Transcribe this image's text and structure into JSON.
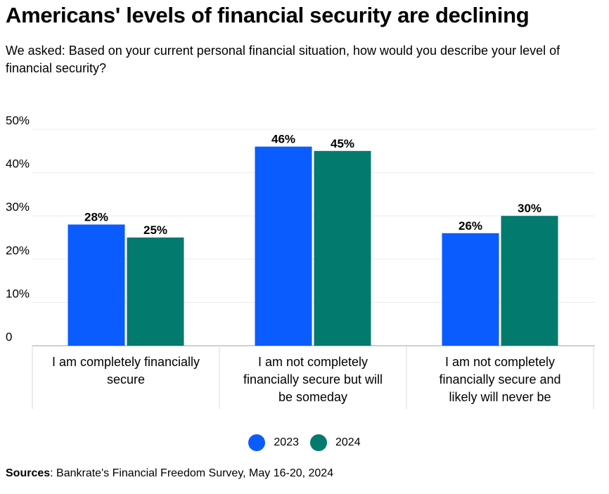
{
  "title": "Americans' levels of financial security are declining",
  "subtitle": "We asked: Based on your current personal financial situation, how would you describe your level of financial security?",
  "source": {
    "label": "Sources",
    "text": ": Bankrate's Financial Freedom Survey, May 16-20, 2024"
  },
  "colors": {
    "s2023": "#0a5cff",
    "s2024": "#027a6e"
  },
  "chart_data": {
    "type": "bar",
    "categories": [
      "I am completely financially secure",
      "I am not completely financially secure but will be someday",
      "I am not completely financially secure and likely will never be"
    ],
    "series": [
      {
        "name": "2023",
        "values": [
          28,
          46,
          26
        ]
      },
      {
        "name": "2024",
        "values": [
          25,
          45,
          30
        ]
      }
    ],
    "value_labels": [
      [
        "28%",
        "46%",
        "26%"
      ],
      [
        "25%",
        "45%",
        "30%"
      ]
    ],
    "yticks": [
      "0",
      "10%",
      "20%",
      "30%",
      "40%",
      "50%"
    ],
    "ylim": [
      0,
      50
    ],
    "grid": true,
    "legend": "bottom-center",
    "xlabel": "",
    "ylabel": ""
  }
}
